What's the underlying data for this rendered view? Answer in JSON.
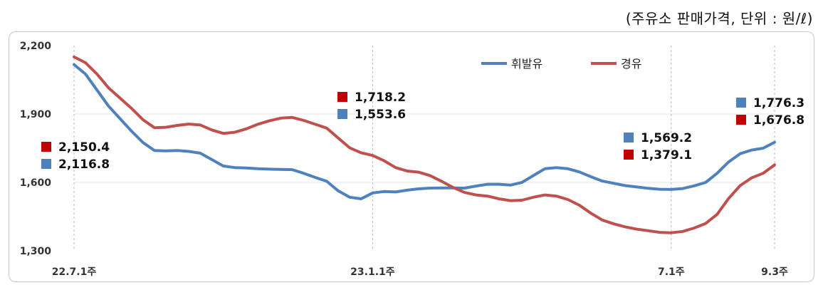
{
  "unit_note": "(주유소 판매가격, 단위 : 원/ℓ)",
  "chart_data": {
    "type": "line",
    "y_ticks": [
      "2,200",
      "1,900",
      "1,600",
      "1,300"
    ],
    "y_tick_values": [
      2200,
      1900,
      1600,
      1300
    ],
    "ylim": [
      1300,
      2200
    ],
    "x_labels": [
      {
        "index": 0,
        "text": "22.7.1주"
      },
      {
        "index": 26,
        "text": "23.1.1주"
      },
      {
        "index": 52,
        "text": "7.1주"
      },
      {
        "index": 61,
        "text": "9.3주"
      }
    ],
    "x_count": 62,
    "grid": "vertical-dashed-at-labels",
    "legend_position": "top-right",
    "series": [
      {
        "name": "휘발유",
        "color": "#4f81bd",
        "values": [
          2116.8,
          2075,
          2005,
          1935,
          1880,
          1825,
          1775,
          1740,
          1738,
          1740,
          1736,
          1728,
          1700,
          1672,
          1665,
          1663,
          1660,
          1658,
          1657,
          1656,
          1640,
          1622,
          1605,
          1563,
          1535,
          1528,
          1553.6,
          1560,
          1558,
          1566,
          1572,
          1575,
          1576,
          1576,
          1575,
          1584,
          1592,
          1592,
          1588,
          1600,
          1630,
          1660,
          1665,
          1660,
          1646,
          1625,
          1606,
          1596,
          1586,
          1580,
          1574,
          1570,
          1569.2,
          1573,
          1585,
          1600,
          1640,
          1690,
          1726,
          1742,
          1750,
          1776.3
        ]
      },
      {
        "name": "경유",
        "color": "#c0504d",
        "values": [
          2150.4,
          2125,
          2075,
          2015,
          1970,
          1925,
          1875,
          1840,
          1842,
          1850,
          1856,
          1852,
          1830,
          1815,
          1820,
          1835,
          1855,
          1870,
          1882,
          1885,
          1872,
          1855,
          1838,
          1795,
          1752,
          1730,
          1718.2,
          1695,
          1665,
          1650,
          1645,
          1630,
          1605,
          1578,
          1556,
          1545,
          1540,
          1528,
          1520,
          1522,
          1535,
          1545,
          1540,
          1525,
          1500,
          1465,
          1435,
          1418,
          1405,
          1395,
          1388,
          1381,
          1379.1,
          1385,
          1400,
          1420,
          1460,
          1530,
          1586,
          1620,
          1640,
          1676.8
        ]
      }
    ],
    "annotations": {
      "start": [
        {
          "series": "경유",
          "text": "2,150.4"
        },
        {
          "series": "휘발유",
          "text": "2,116.8"
        }
      ],
      "jan": [
        {
          "series": "경유",
          "text": "1,718.2"
        },
        {
          "series": "휘발유",
          "text": "1,553.6"
        }
      ],
      "jul": [
        {
          "series": "휘발유",
          "text": "1,569.2"
        },
        {
          "series": "경유",
          "text": "1,379.1"
        }
      ],
      "end": [
        {
          "series": "휘발유",
          "text": "1,776.3"
        },
        {
          "series": "경유",
          "text": "1,676.8"
        }
      ]
    }
  }
}
